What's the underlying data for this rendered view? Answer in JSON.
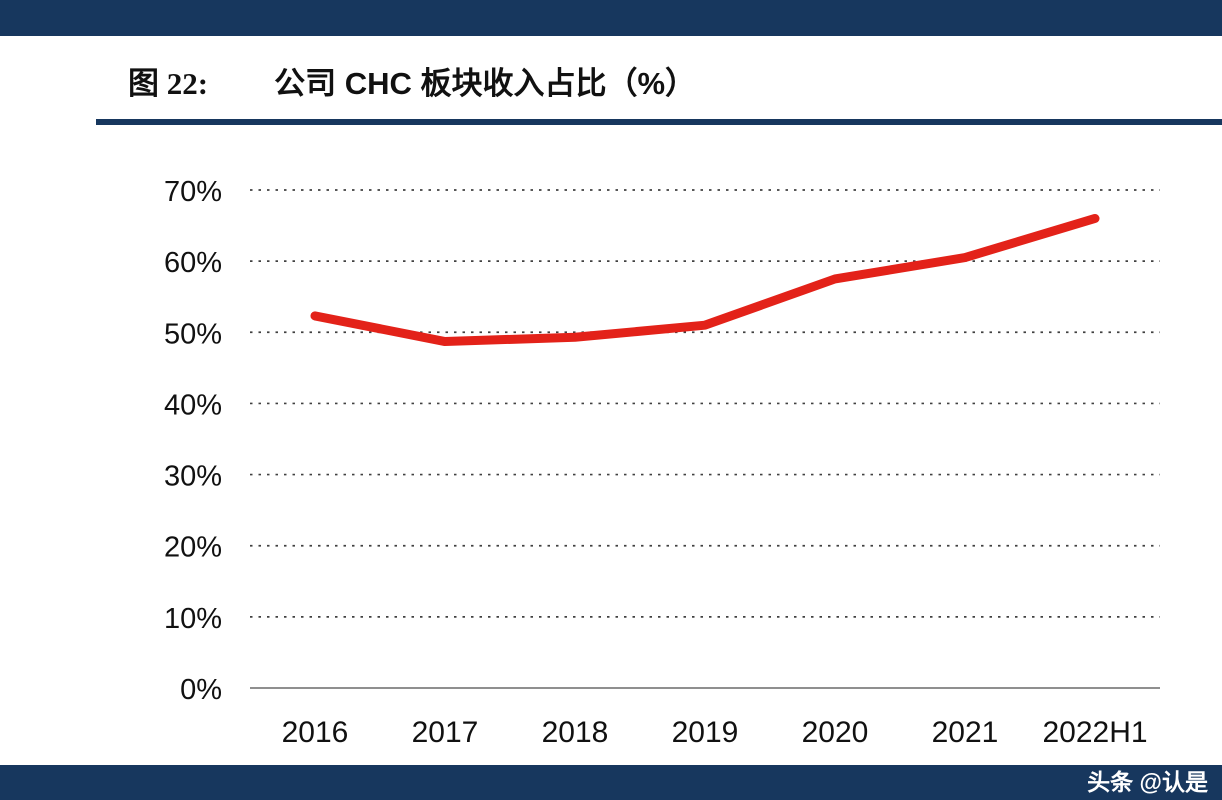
{
  "colors": {
    "navy": "#17375E",
    "line_red": "#E32219",
    "grid": "#404040",
    "axis_baseline": "#7F7F7F",
    "text": "#111111"
  },
  "header": {
    "figure_label": "图 22:",
    "title": "公司 CHC 板块收入占比（%）"
  },
  "footer": {
    "watermark": "头条 @认是"
  },
  "chart_data": {
    "type": "line",
    "title": "公司 CHC 板块收入占比（%）",
    "categories": [
      "2016",
      "2017",
      "2018",
      "2019",
      "2020",
      "2021",
      "2022H1"
    ],
    "values": [
      52.3,
      48.7,
      49.3,
      51.0,
      57.5,
      60.5,
      66.0
    ],
    "xlabel": "",
    "ylabel": "",
    "ylim": [
      0,
      70
    ],
    "ytick_step": 10,
    "ytick_format": "percent",
    "grid": "horizontal-dotted",
    "legend": "none",
    "line_color": "#E32219",
    "line_width": 9
  }
}
